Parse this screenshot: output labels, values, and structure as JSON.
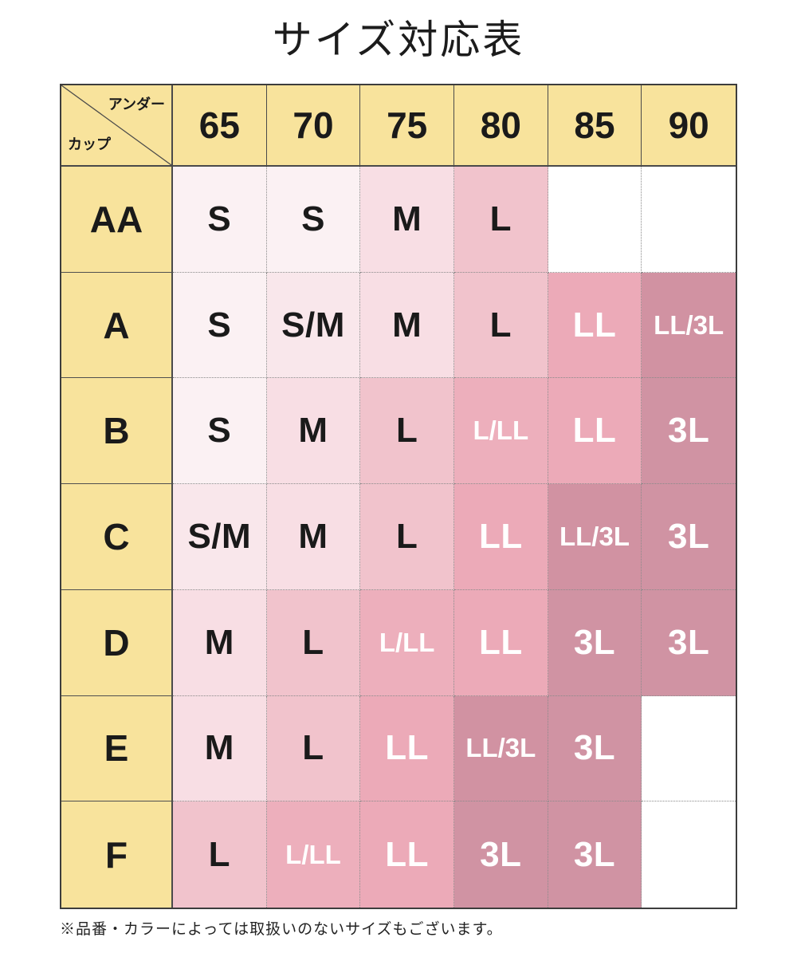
{
  "title": "サイズ対応表",
  "footer_note": "※品番・カラーによっては取扱いのないサイズもございます。",
  "table": {
    "corner": {
      "top_label": "アンダー",
      "bottom_label": "カップ"
    },
    "columns": [
      "65",
      "70",
      "75",
      "80",
      "85",
      "90"
    ],
    "rows": [
      {
        "cup": "AA",
        "cells": [
          "S",
          "S",
          "M",
          "L",
          "",
          ""
        ]
      },
      {
        "cup": "A",
        "cells": [
          "S",
          "S/M",
          "M",
          "L",
          "LL",
          "LL/3L"
        ]
      },
      {
        "cup": "B",
        "cells": [
          "S",
          "M",
          "L",
          "L/LL",
          "LL",
          "3L"
        ]
      },
      {
        "cup": "C",
        "cells": [
          "S/M",
          "M",
          "L",
          "LL",
          "LL/3L",
          "3L"
        ]
      },
      {
        "cup": "D",
        "cells": [
          "M",
          "L",
          "L/LL",
          "LL",
          "3L",
          "3L"
        ]
      },
      {
        "cup": "E",
        "cells": [
          "M",
          "L",
          "LL",
          "LL/3L",
          "3L",
          ""
        ]
      },
      {
        "cup": "F",
        "cells": [
          "L",
          "L/LL",
          "LL",
          "3L",
          "3L",
          ""
        ]
      }
    ]
  },
  "shades": {
    "S": {
      "bg": "#FBF1F3",
      "text": "#1A1A1A"
    },
    "S/M": {
      "bg": "#F9E7EB",
      "text": "#1A1A1A"
    },
    "M": {
      "bg": "#F8DEE4",
      "text": "#1A1A1A"
    },
    "L": {
      "bg": "#F1C3CC",
      "text": "#1A1A1A"
    },
    "L/LL": {
      "bg": "#EDAFBC",
      "text": "#FFFFFF"
    },
    "LL": {
      "bg": "#ECAAB8",
      "text": "#FFFFFF"
    },
    "LL/3L": {
      "bg": "#D192A2",
      "text": "#FFFFFF"
    },
    "3L": {
      "bg": "#D093A3",
      "text": "#FFFFFF"
    }
  },
  "colors": {
    "header_yellow": "#F8E39C",
    "border_dark": "#3D3D3D",
    "grid_dotted": "#8A8A8A",
    "empty_cell": "#FFFFFF"
  },
  "chart_data": {
    "type": "table",
    "title": "サイズ対応表",
    "col_axis_label": "アンダー",
    "row_axis_label": "カップ",
    "columns": [
      "65",
      "70",
      "75",
      "80",
      "85",
      "90"
    ],
    "row_headers": [
      "AA",
      "A",
      "B",
      "C",
      "D",
      "E",
      "F"
    ],
    "values": [
      [
        "S",
        "S",
        "M",
        "L",
        "",
        ""
      ],
      [
        "S",
        "S/M",
        "M",
        "L",
        "LL",
        "LL/3L"
      ],
      [
        "S",
        "M",
        "L",
        "L/LL",
        "LL",
        "3L"
      ],
      [
        "S/M",
        "M",
        "L",
        "LL",
        "LL/3L",
        "3L"
      ],
      [
        "M",
        "L",
        "L/LL",
        "LL",
        "3L",
        "3L"
      ],
      [
        "M",
        "L",
        "LL",
        "LL/3L",
        "3L",
        ""
      ],
      [
        "L",
        "L/LL",
        "LL",
        "3L",
        "3L",
        ""
      ]
    ],
    "note": "※品番・カラーによっては取扱いのないサイズもございます。",
    "legend_position": "none",
    "grid": true
  }
}
